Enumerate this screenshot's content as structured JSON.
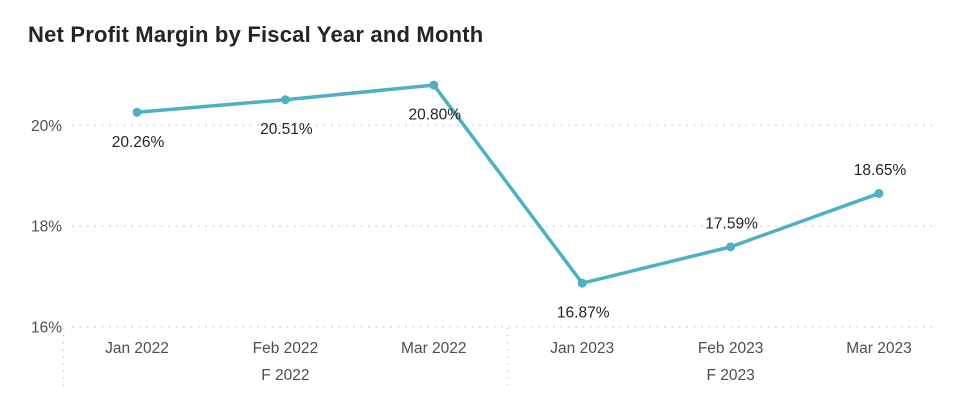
{
  "chart_data": {
    "type": "line",
    "title": "Net Profit Margin by Fiscal Year and Month",
    "x": [
      "Jan 2022",
      "Feb 2022",
      "Mar 2022",
      "Jan 2023",
      "Feb 2023",
      "Mar 2023"
    ],
    "x_groups": [
      {
        "label": "F 2022",
        "members": [
          0,
          1,
          2
        ]
      },
      {
        "label": "F 2023",
        "members": [
          3,
          4,
          5
        ]
      }
    ],
    "values": [
      20.26,
      20.51,
      20.8,
      16.87,
      17.59,
      18.65
    ],
    "data_labels": [
      "20.26%",
      "20.51%",
      "20.80%",
      "16.87%",
      "17.59%",
      "18.65%"
    ],
    "data_label_side": [
      "below",
      "below",
      "below",
      "below",
      "above",
      "above"
    ],
    "y_axis": {
      "tick_labels": [
        "20%",
        "18%",
        "16%"
      ],
      "tick_values": [
        20,
        18,
        16
      ],
      "min": 16,
      "max": 21.2
    },
    "grid": {
      "horizontal_gridlines": "dotted",
      "group_separators": "dotted",
      "legend": "none"
    },
    "colors": {
      "line": "#4FB0C3",
      "marker": "#4FB0C3",
      "grid": "#DDDDDD",
      "separator": "#D6D6D6",
      "title": "#252423",
      "data_label": "#252423",
      "axis_label": "#4E4E4E",
      "background": "#FFFFFF"
    }
  }
}
